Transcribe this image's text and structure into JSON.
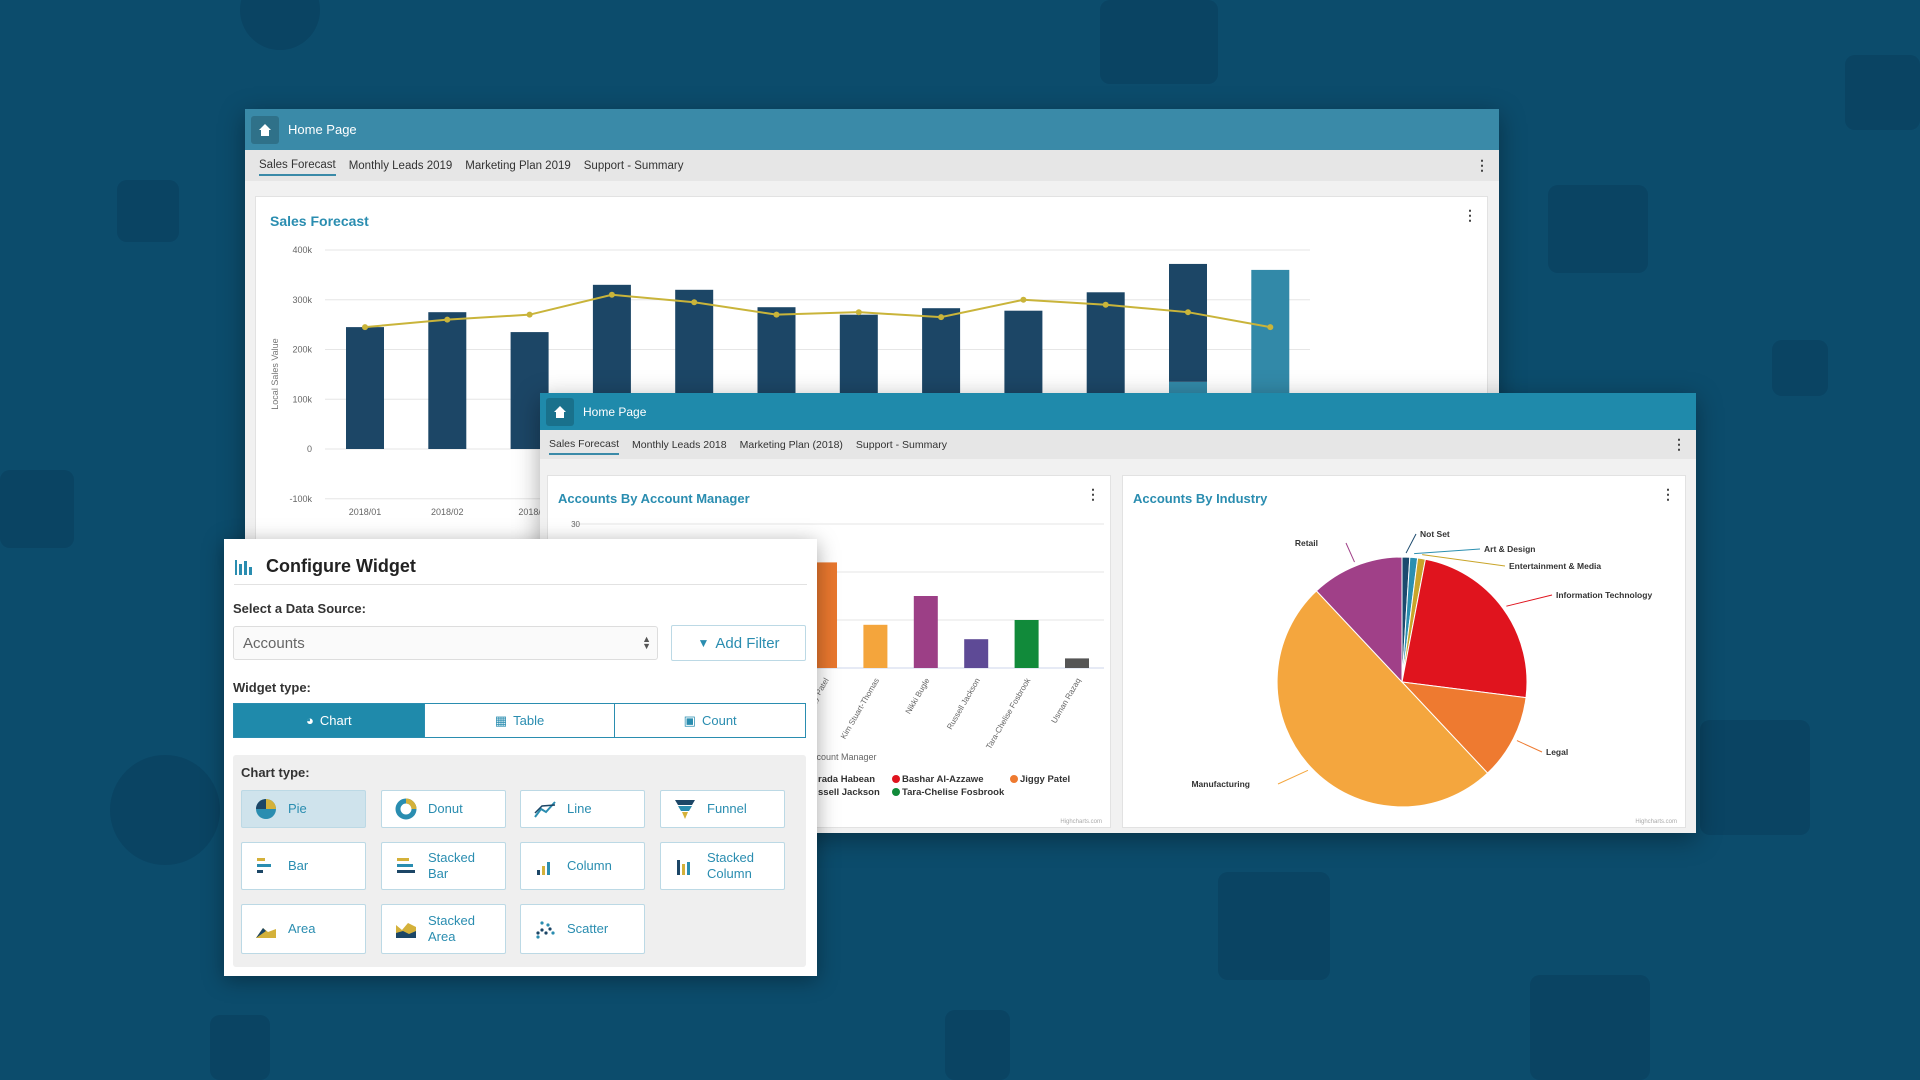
{
  "colors": {
    "background": "#0c4c6c",
    "accent": "#1f8aab",
    "bar_dark": "#1c4666",
    "bar_light": "#3289a8",
    "line": "#c9b43a"
  },
  "window_back": {
    "header_title": "Home Page",
    "tabs": [
      {
        "label": "Sales Forecast",
        "active": true
      },
      {
        "label": "Monthly Leads 2019"
      },
      {
        "label": "Marketing Plan 2019"
      },
      {
        "label": "Support - Summary"
      }
    ],
    "card_title": "Sales Forecast"
  },
  "window_front": {
    "header_title": "Home Page",
    "tabs": [
      {
        "label": "Sales Forecast",
        "active": true
      },
      {
        "label": "Monthly Leads 2018"
      },
      {
        "label": "Marketing Plan (2018)"
      },
      {
        "label": "Support - Summary"
      }
    ],
    "card_left_title": "Accounts By Account Manager",
    "card_right_title": "Accounts By Industry",
    "credits": "Highcharts.com",
    "legend": [
      {
        "name": "rada Habean",
        "color": "#1c4666"
      },
      {
        "name": "Bashar Al-Azzawe",
        "color": "#e0141e"
      },
      {
        "name": "Jiggy Patel",
        "color": "#ee7a30"
      },
      {
        "name": "ssell Jackson",
        "color": "#5e4a96"
      },
      {
        "name": "Tara-Chelise Fosbrook",
        "color": "#118a3a"
      }
    ]
  },
  "chart_data": [
    {
      "type": "bar",
      "title": "Sales Forecast",
      "ylabel": "Local Sales Value",
      "ylim": [
        -100000,
        400000
      ],
      "yticks": [
        "400k",
        "300k",
        "200k",
        "100k",
        "0",
        "-100k"
      ],
      "categories": [
        "2018/01",
        "2018/02",
        "2018/",
        "",
        "",
        "",
        "",
        "",
        "",
        "",
        "",
        ""
      ],
      "series": [
        {
          "type": "column",
          "color": "#1c4666",
          "values": [
            245000,
            275000,
            235000,
            330000,
            320000,
            285000,
            270000,
            283000,
            278000,
            315000,
            237000,
            0
          ]
        },
        {
          "type": "column",
          "color": "#3289a8",
          "values": [
            0,
            0,
            0,
            0,
            0,
            0,
            0,
            0,
            0,
            0,
            135000,
            360000
          ]
        },
        {
          "type": "line",
          "color": "#c9b43a",
          "values": [
            245000,
            260000,
            270000,
            310000,
            295000,
            270000,
            275000,
            265000,
            300000,
            290000,
            275000,
            245000
          ]
        }
      ],
      "grid": true
    },
    {
      "type": "bar",
      "title": "Accounts By Account Manager",
      "xlabel": "Account Manager",
      "ytick_top": "30",
      "ylim": [
        0,
        30
      ],
      "categories": [
        "Jiggy Patel",
        "Kim Stuart-Thomas",
        "Nikki Bugle",
        "Russell Jackson",
        "Tara-Chelise Fosbrook",
        "Usman Razaq"
      ],
      "values": [
        22,
        9,
        15,
        6,
        10,
        2
      ],
      "colors": [
        "#e8772e",
        "#f4a53c",
        "#9c3f86",
        "#5e4a96",
        "#118a3a",
        "#555555"
      ],
      "grid": true
    },
    {
      "type": "pie",
      "title": "Accounts By Industry",
      "slices": [
        {
          "label": "Not Set",
          "value": 1,
          "color": "#1c4a6e"
        },
        {
          "label": "Art & Design",
          "value": 1,
          "color": "#2b8fb0"
        },
        {
          "label": "Entertainment & Media",
          "value": 1,
          "color": "#c9a52a"
        },
        {
          "label": "Information Technology",
          "value": 24,
          "color": "#e0141e"
        },
        {
          "label": "Legal",
          "value": 11,
          "color": "#ee7a30"
        },
        {
          "label": "Manufacturing",
          "value": 50,
          "color": "#f4a63e"
        },
        {
          "label": "Retail",
          "value": 12,
          "color": "#a04088"
        }
      ]
    }
  ],
  "dialog": {
    "title": "Configure Widget",
    "data_source_label": "Select a Data Source:",
    "data_source_value": "Accounts",
    "add_filter": "Add Filter",
    "widget_type_label": "Widget type:",
    "widget_types": [
      {
        "label": "Chart",
        "selected": true
      },
      {
        "label": "Table"
      },
      {
        "label": "Count"
      }
    ],
    "chart_type_label": "Chart type:",
    "chart_types": [
      {
        "label": "Pie",
        "icon": "pie-icon",
        "selected": true
      },
      {
        "label": "Donut",
        "icon": "donut-icon"
      },
      {
        "label": "Line",
        "icon": "line-chart-icon"
      },
      {
        "label": "Funnel",
        "icon": "funnel-icon"
      },
      {
        "label": "Bar",
        "icon": "bar-chart-icon"
      },
      {
        "label": "Stacked Bar",
        "icon": "stacked-bar-icon"
      },
      {
        "label": "Column",
        "icon": "column-chart-icon"
      },
      {
        "label": "Stacked Column",
        "icon": "stacked-column-icon"
      },
      {
        "label": "Area",
        "icon": "area-chart-icon"
      },
      {
        "label": "Stacked Area",
        "icon": "stacked-area-icon"
      },
      {
        "label": "Scatter",
        "icon": "scatter-icon"
      }
    ]
  }
}
